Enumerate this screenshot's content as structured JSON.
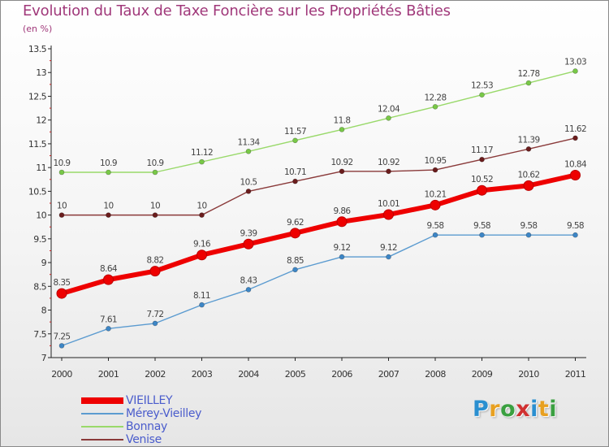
{
  "title": "Evolution du Taux de Taxe Foncière sur les Propriétés Bâties",
  "subtitle": "(en %)",
  "logo": {
    "text": "Proxiti",
    "letters": [
      {
        "ch": "P",
        "color": "#2a8fd0"
      },
      {
        "ch": "r",
        "color": "#e8a020"
      },
      {
        "ch": "o",
        "color": "#3aa040"
      },
      {
        "ch": "x",
        "color": "#d03030"
      },
      {
        "ch": "i",
        "color": "#2a8fd0"
      },
      {
        "ch": "t",
        "color": "#e8a020"
      },
      {
        "ch": "i",
        "color": "#3aa040"
      }
    ]
  },
  "chart_data": {
    "type": "line",
    "title": "Evolution du Taux de Taxe Foncière sur les Propriétés Bâties",
    "ylabel": "(en %)",
    "xlabel": "",
    "x": [
      "2000",
      "2001",
      "2002",
      "2003",
      "2004",
      "2005",
      "2006",
      "2007",
      "2008",
      "2009",
      "2010",
      "2011"
    ],
    "ylim": [
      7,
      13.5
    ],
    "yticks": [
      "7",
      "7.5",
      "8",
      "8.5",
      "9",
      "9.5",
      "10",
      "10.5",
      "11",
      "11.5",
      "12",
      "12.5",
      "13",
      "13.5"
    ],
    "grid": false,
    "legend_position": "bottom-left",
    "series": [
      {
        "name": "VIEILLEY",
        "color": "#ee0000",
        "style": "thick",
        "values": [
          8.35,
          8.64,
          8.82,
          9.16,
          9.39,
          9.62,
          9.86,
          10.01,
          10.21,
          10.52,
          10.62,
          10.84
        ],
        "labels": [
          "8.35",
          "8.64",
          "8.82",
          "9.16",
          "9.39",
          "9.62",
          "9.86",
          "10.01",
          "10.21",
          "10.52",
          "10.62",
          "10.84"
        ]
      },
      {
        "name": "Mérey-Vieilley",
        "color": "#5b9bd0",
        "marker": "#3d86c6",
        "style": "thin",
        "values": [
          7.25,
          7.61,
          7.72,
          8.11,
          8.43,
          8.85,
          9.12,
          9.12,
          9.58,
          9.58,
          9.58,
          9.58
        ],
        "labels": [
          "7.25",
          "7.61",
          "7.72",
          "8.11",
          "8.43",
          "8.85",
          "9.12",
          "9.12",
          "9.58",
          "9.58",
          "9.58",
          "9.58"
        ]
      },
      {
        "name": "Bonnay",
        "color": "#99d96a",
        "marker": "#78c847",
        "style": "thin",
        "values": [
          10.9,
          10.9,
          10.9,
          11.12,
          11.34,
          11.57,
          11.8,
          12.04,
          12.28,
          12.53,
          12.78,
          13.03
        ],
        "labels": [
          "10.9",
          "10.9",
          "10.9",
          "11.12",
          "11.34",
          "11.57",
          "11.8",
          "12.04",
          "12.28",
          "12.53",
          "12.78",
          "13.03"
        ]
      },
      {
        "name": "Venise",
        "color": "#8a3a3a",
        "marker": "#6a1c1c",
        "style": "thin",
        "values": [
          10,
          10,
          10,
          10,
          10.5,
          10.71,
          10.92,
          10.92,
          10.95,
          11.17,
          11.39,
          11.62
        ],
        "labels": [
          "10",
          "10",
          "10",
          "10",
          "10.5",
          "10.71",
          "10.92",
          "10.92",
          "10.95",
          "11.17",
          "11.39",
          "11.62"
        ]
      }
    ]
  }
}
